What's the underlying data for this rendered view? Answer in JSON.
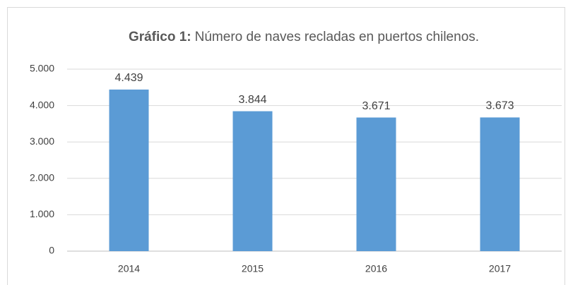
{
  "chart_data": {
    "type": "bar",
    "title_label": "Gráfico 1:",
    "title": "Número de naves recladas en puertos chilenos.",
    "categories": [
      "2014",
      "2015",
      "2016",
      "2017"
    ],
    "values": [
      4439,
      3844,
      3671,
      3673
    ],
    "value_labels": [
      "4.439",
      "3.844",
      "3.671",
      "3.673"
    ],
    "color": "#5b9bd5",
    "ylim": [
      0,
      5000
    ],
    "yticks": [
      0,
      {
        "value": 1000,
        "label": "1.000"
      },
      {
        "value": 2000,
        "label": "2.000"
      },
      {
        "value": 3000,
        "label": "3.000"
      },
      {
        "value": 4000,
        "label": "4.000"
      },
      {
        "value": 5000,
        "label": "5.000"
      }
    ],
    "grid": true
  }
}
